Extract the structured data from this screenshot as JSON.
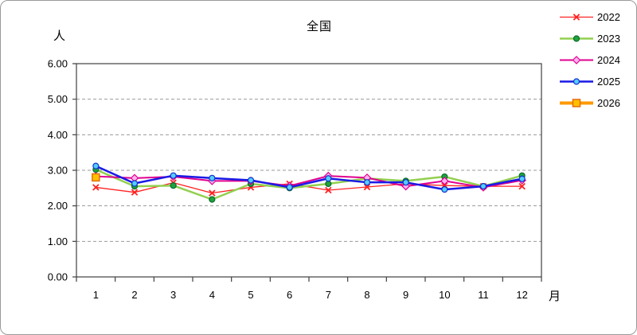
{
  "chart_data": {
    "type": "line",
    "title": "全国",
    "y_axis_label": "人",
    "x_axis_label": "月",
    "x_ticks": [
      "1",
      "2",
      "3",
      "4",
      "5",
      "6",
      "7",
      "8",
      "9",
      "10",
      "11",
      "12"
    ],
    "y_ticks": [
      "0.00",
      "1.00",
      "2.00",
      "3.00",
      "4.00",
      "5.00",
      "6.00"
    ],
    "ylim": [
      0,
      6
    ],
    "grid": "horizontal-dashed",
    "gridline_color": "#999999",
    "axis_color": "#404040",
    "legend_position": "top-right",
    "categories": [
      1,
      2,
      3,
      4,
      5,
      6,
      7,
      8,
      9,
      10,
      11,
      12
    ],
    "series": [
      {
        "name": "2022",
        "marker": "x",
        "line_color": "#FF2222",
        "line_width": 1.3,
        "marker_fill": "#FF2222",
        "marker_stroke": "#D40000",
        "values": [
          2.52,
          2.38,
          2.65,
          2.36,
          2.52,
          2.62,
          2.44,
          2.53,
          2.62,
          2.57,
          2.55,
          2.55
        ]
      },
      {
        "name": "2023",
        "marker": "circle",
        "line_color": "#92D050",
        "line_width": 2.5,
        "marker_fill": "#1FA33F",
        "marker_stroke": "#0C6B2A",
        "values": [
          3.02,
          2.55,
          2.57,
          2.18,
          2.62,
          2.5,
          2.62,
          2.77,
          2.7,
          2.82,
          2.55,
          2.85
        ]
      },
      {
        "name": "2024",
        "marker": "diamond",
        "line_color": "#E00090",
        "line_width": 2,
        "marker_fill": "#FFB3F0",
        "marker_stroke": "#E00090",
        "values": [
          2.83,
          2.78,
          2.82,
          2.7,
          2.7,
          2.56,
          2.84,
          2.79,
          2.55,
          2.7,
          2.52,
          2.72
        ]
      },
      {
        "name": "2025",
        "marker": "circle",
        "line_color": "#1A1AE6",
        "line_width": 2.5,
        "marker_fill": "#55CCFF",
        "marker_stroke": "#1133CC",
        "values": [
          3.12,
          2.63,
          2.85,
          2.78,
          2.72,
          2.52,
          2.77,
          2.66,
          2.66,
          2.46,
          2.55,
          2.76
        ]
      },
      {
        "name": "2026",
        "marker": "square",
        "line_color": "#FF9900",
        "line_width": 4,
        "marker_fill": "#FFC000",
        "marker_stroke": "#E36C0A",
        "values": [
          2.8,
          null,
          null,
          null,
          null,
          null,
          null,
          null,
          null,
          null,
          null,
          null
        ]
      }
    ]
  }
}
